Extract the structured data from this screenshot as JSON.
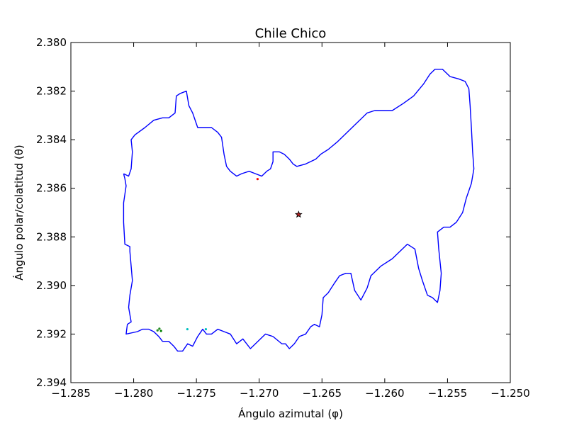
{
  "chart_data": {
    "type": "line",
    "title": "Chile Chico",
    "xlabel": "Ángulo azimutal (φ)",
    "ylabel": "Ángulo polar/colatitud (θ)",
    "xlim": [
      -1.285,
      -1.25
    ],
    "ylim": [
      2.38,
      2.394
    ],
    "y_inverted": true,
    "grid": false,
    "x_ticks": [
      -1.285,
      -1.28,
      -1.275,
      -1.27,
      -1.265,
      -1.26,
      -1.255,
      -1.25
    ],
    "x_tick_labels": [
      "−1.285",
      "−1.280",
      "−1.275",
      "−1.270",
      "−1.265",
      "−1.260",
      "−1.255",
      "−1.250"
    ],
    "y_ticks": [
      2.38,
      2.382,
      2.384,
      2.386,
      2.388,
      2.39,
      2.392,
      2.394
    ],
    "y_tick_labels": [
      "2.380",
      "2.382",
      "2.384",
      "2.386",
      "2.388",
      "2.390",
      "2.392",
      "2.394"
    ],
    "series": [
      {
        "color": "#0000ff",
        "points": [
          [
            -1.2808,
            2.3854
          ],
          [
            -1.2804,
            2.3855
          ],
          [
            -1.2802,
            2.3852
          ],
          [
            -1.2801,
            2.3845
          ],
          [
            -1.2802,
            2.384
          ],
          [
            -1.2799,
            2.3838
          ],
          [
            -1.2791,
            2.3835
          ],
          [
            -1.2784,
            2.3832
          ],
          [
            -1.2777,
            2.3831
          ],
          [
            -1.2772,
            2.3831
          ],
          [
            -1.2767,
            2.3829
          ],
          [
            -1.2766,
            2.3822
          ],
          [
            -1.2763,
            2.3821
          ],
          [
            -1.2758,
            2.382
          ],
          [
            -1.2756,
            2.3826
          ],
          [
            -1.2753,
            2.3829
          ],
          [
            -1.2751,
            2.3832
          ],
          [
            -1.2749,
            2.3835
          ],
          [
            -1.2744,
            2.3835
          ],
          [
            -1.2738,
            2.3835
          ],
          [
            -1.2733,
            2.3837
          ],
          [
            -1.273,
            2.3839
          ],
          [
            -1.2728,
            2.3846
          ],
          [
            -1.2726,
            2.3851
          ],
          [
            -1.2723,
            2.3853
          ],
          [
            -1.2718,
            2.3855
          ],
          [
            -1.2714,
            2.3854
          ],
          [
            -1.2708,
            2.3853
          ],
          [
            -1.2703,
            2.3854
          ],
          [
            -1.2698,
            2.3855
          ],
          [
            -1.2694,
            2.3853
          ],
          [
            -1.2691,
            2.3852
          ],
          [
            -1.2689,
            2.3849
          ],
          [
            -1.2689,
            2.3845
          ],
          [
            -1.2684,
            2.3845
          ],
          [
            -1.268,
            2.3846
          ],
          [
            -1.2676,
            2.3848
          ],
          [
            -1.2673,
            2.385
          ],
          [
            -1.267,
            2.3851
          ],
          [
            -1.2663,
            2.385
          ],
          [
            -1.2655,
            2.3848
          ],
          [
            -1.2651,
            2.3846
          ],
          [
            -1.2645,
            2.3844
          ],
          [
            -1.2638,
            2.3841
          ],
          [
            -1.263,
            2.3837
          ],
          [
            -1.2622,
            2.3833
          ],
          [
            -1.2614,
            2.3829
          ],
          [
            -1.2608,
            2.3828
          ],
          [
            -1.2601,
            2.3828
          ],
          [
            -1.2594,
            2.3828
          ],
          [
            -1.2585,
            2.3825
          ],
          [
            -1.2577,
            2.3822
          ],
          [
            -1.2569,
            2.3817
          ],
          [
            -1.2564,
            2.3813
          ],
          [
            -1.256,
            2.3811
          ],
          [
            -1.2554,
            2.3811
          ],
          [
            -1.2548,
            2.3814
          ],
          [
            -1.2541,
            2.3815
          ],
          [
            -1.2536,
            2.3816
          ],
          [
            -1.2533,
            2.3819
          ],
          [
            -1.2532,
            2.3826
          ],
          [
            -1.2531,
            2.3835
          ],
          [
            -1.253,
            2.3845
          ],
          [
            -1.2529,
            2.3852
          ],
          [
            -1.2531,
            2.3858
          ],
          [
            -1.2535,
            2.3864
          ],
          [
            -1.2538,
            2.387
          ],
          [
            -1.2543,
            2.3874
          ],
          [
            -1.2548,
            2.3876
          ],
          [
            -1.2553,
            2.3876
          ],
          [
            -1.2558,
            2.3878
          ],
          [
            -1.2557,
            2.3885
          ],
          [
            -1.2555,
            2.3895
          ],
          [
            -1.2556,
            2.3902
          ],
          [
            -1.2558,
            2.3907
          ],
          [
            -1.2562,
            2.3905
          ],
          [
            -1.2566,
            2.3904
          ],
          [
            -1.257,
            2.3898
          ],
          [
            -1.2573,
            2.3893
          ],
          [
            -1.2576,
            2.3885
          ],
          [
            -1.2582,
            2.3883
          ],
          [
            -1.2588,
            2.3886
          ],
          [
            -1.2594,
            2.3889
          ],
          [
            -1.2603,
            2.3892
          ],
          [
            -1.2611,
            2.3896
          ],
          [
            -1.2614,
            2.3901
          ],
          [
            -1.2619,
            2.3906
          ],
          [
            -1.2624,
            2.3902
          ],
          [
            -1.2627,
            2.3895
          ],
          [
            -1.2631,
            2.3895
          ],
          [
            -1.2636,
            2.3896
          ],
          [
            -1.264,
            2.3899
          ],
          [
            -1.2645,
            2.3903
          ],
          [
            -1.2649,
            2.3905
          ],
          [
            -1.265,
            2.3912
          ],
          [
            -1.2652,
            2.3917
          ],
          [
            -1.2656,
            2.3916
          ],
          [
            -1.2659,
            2.3917
          ],
          [
            -1.2663,
            2.392
          ],
          [
            -1.2668,
            2.3921
          ],
          [
            -1.2672,
            2.3924
          ],
          [
            -1.2676,
            2.3926
          ],
          [
            -1.2679,
            2.3924
          ],
          [
            -1.2682,
            2.3924
          ],
          [
            -1.2689,
            2.3921
          ],
          [
            -1.2695,
            2.392
          ],
          [
            -1.2699,
            2.3922
          ],
          [
            -1.2703,
            2.3924
          ],
          [
            -1.2707,
            2.3926
          ],
          [
            -1.2713,
            2.3922
          ],
          [
            -1.2718,
            2.3924
          ],
          [
            -1.2723,
            2.392
          ],
          [
            -1.2728,
            2.3919
          ],
          [
            -1.2733,
            2.3918
          ],
          [
            -1.2738,
            2.392
          ],
          [
            -1.2742,
            2.392
          ],
          [
            -1.2745,
            2.3918
          ],
          [
            -1.2749,
            2.3921
          ],
          [
            -1.2753,
            2.3925
          ],
          [
            -1.2757,
            2.3924
          ],
          [
            -1.2761,
            2.3927
          ],
          [
            -1.2765,
            2.3927
          ],
          [
            -1.2768,
            2.3925
          ],
          [
            -1.2772,
            2.3923
          ],
          [
            -1.2777,
            2.3923
          ],
          [
            -1.278,
            2.3921
          ],
          [
            -1.2784,
            2.3919
          ],
          [
            -1.2788,
            2.3918
          ],
          [
            -1.2793,
            2.3918
          ],
          [
            -1.2797,
            2.3919
          ],
          [
            -1.2806,
            2.392
          ],
          [
            -1.2805,
            2.3916
          ],
          [
            -1.2802,
            2.3915
          ],
          [
            -1.2804,
            2.3909
          ],
          [
            -1.2803,
            2.3904
          ],
          [
            -1.2801,
            2.3898
          ],
          [
            -1.2802,
            2.3892
          ],
          [
            -1.2803,
            2.3886
          ],
          [
            -1.2803,
            2.3884
          ],
          [
            -1.2807,
            2.3883
          ],
          [
            -1.2808,
            2.3874
          ],
          [
            -1.2808,
            2.3866
          ],
          [
            -1.2806,
            2.3859
          ],
          [
            -1.2807,
            2.3856
          ],
          [
            -1.2808,
            2.3854
          ]
        ]
      }
    ],
    "markers": [
      {
        "x": -1.26686,
        "y": 2.38708,
        "shape": "star",
        "fill": "#b22222",
        "edge": "#000000"
      },
      {
        "x": -1.27013,
        "y": 2.38562,
        "shape": "dot",
        "fill": "#ff0000"
      },
      {
        "x": -1.27795,
        "y": 2.39178,
        "shape": "dot",
        "fill": "#228b22"
      },
      {
        "x": -1.2781,
        "y": 2.39185,
        "shape": "dot",
        "fill": "#228b22"
      },
      {
        "x": -1.27782,
        "y": 2.39187,
        "shape": "dot",
        "fill": "#008000"
      },
      {
        "x": -1.27572,
        "y": 2.3918,
        "shape": "dot",
        "fill": "#00bfbf"
      },
      {
        "x": -1.27425,
        "y": 2.3918,
        "shape": "dot",
        "fill": "#00bfbf"
      }
    ]
  }
}
